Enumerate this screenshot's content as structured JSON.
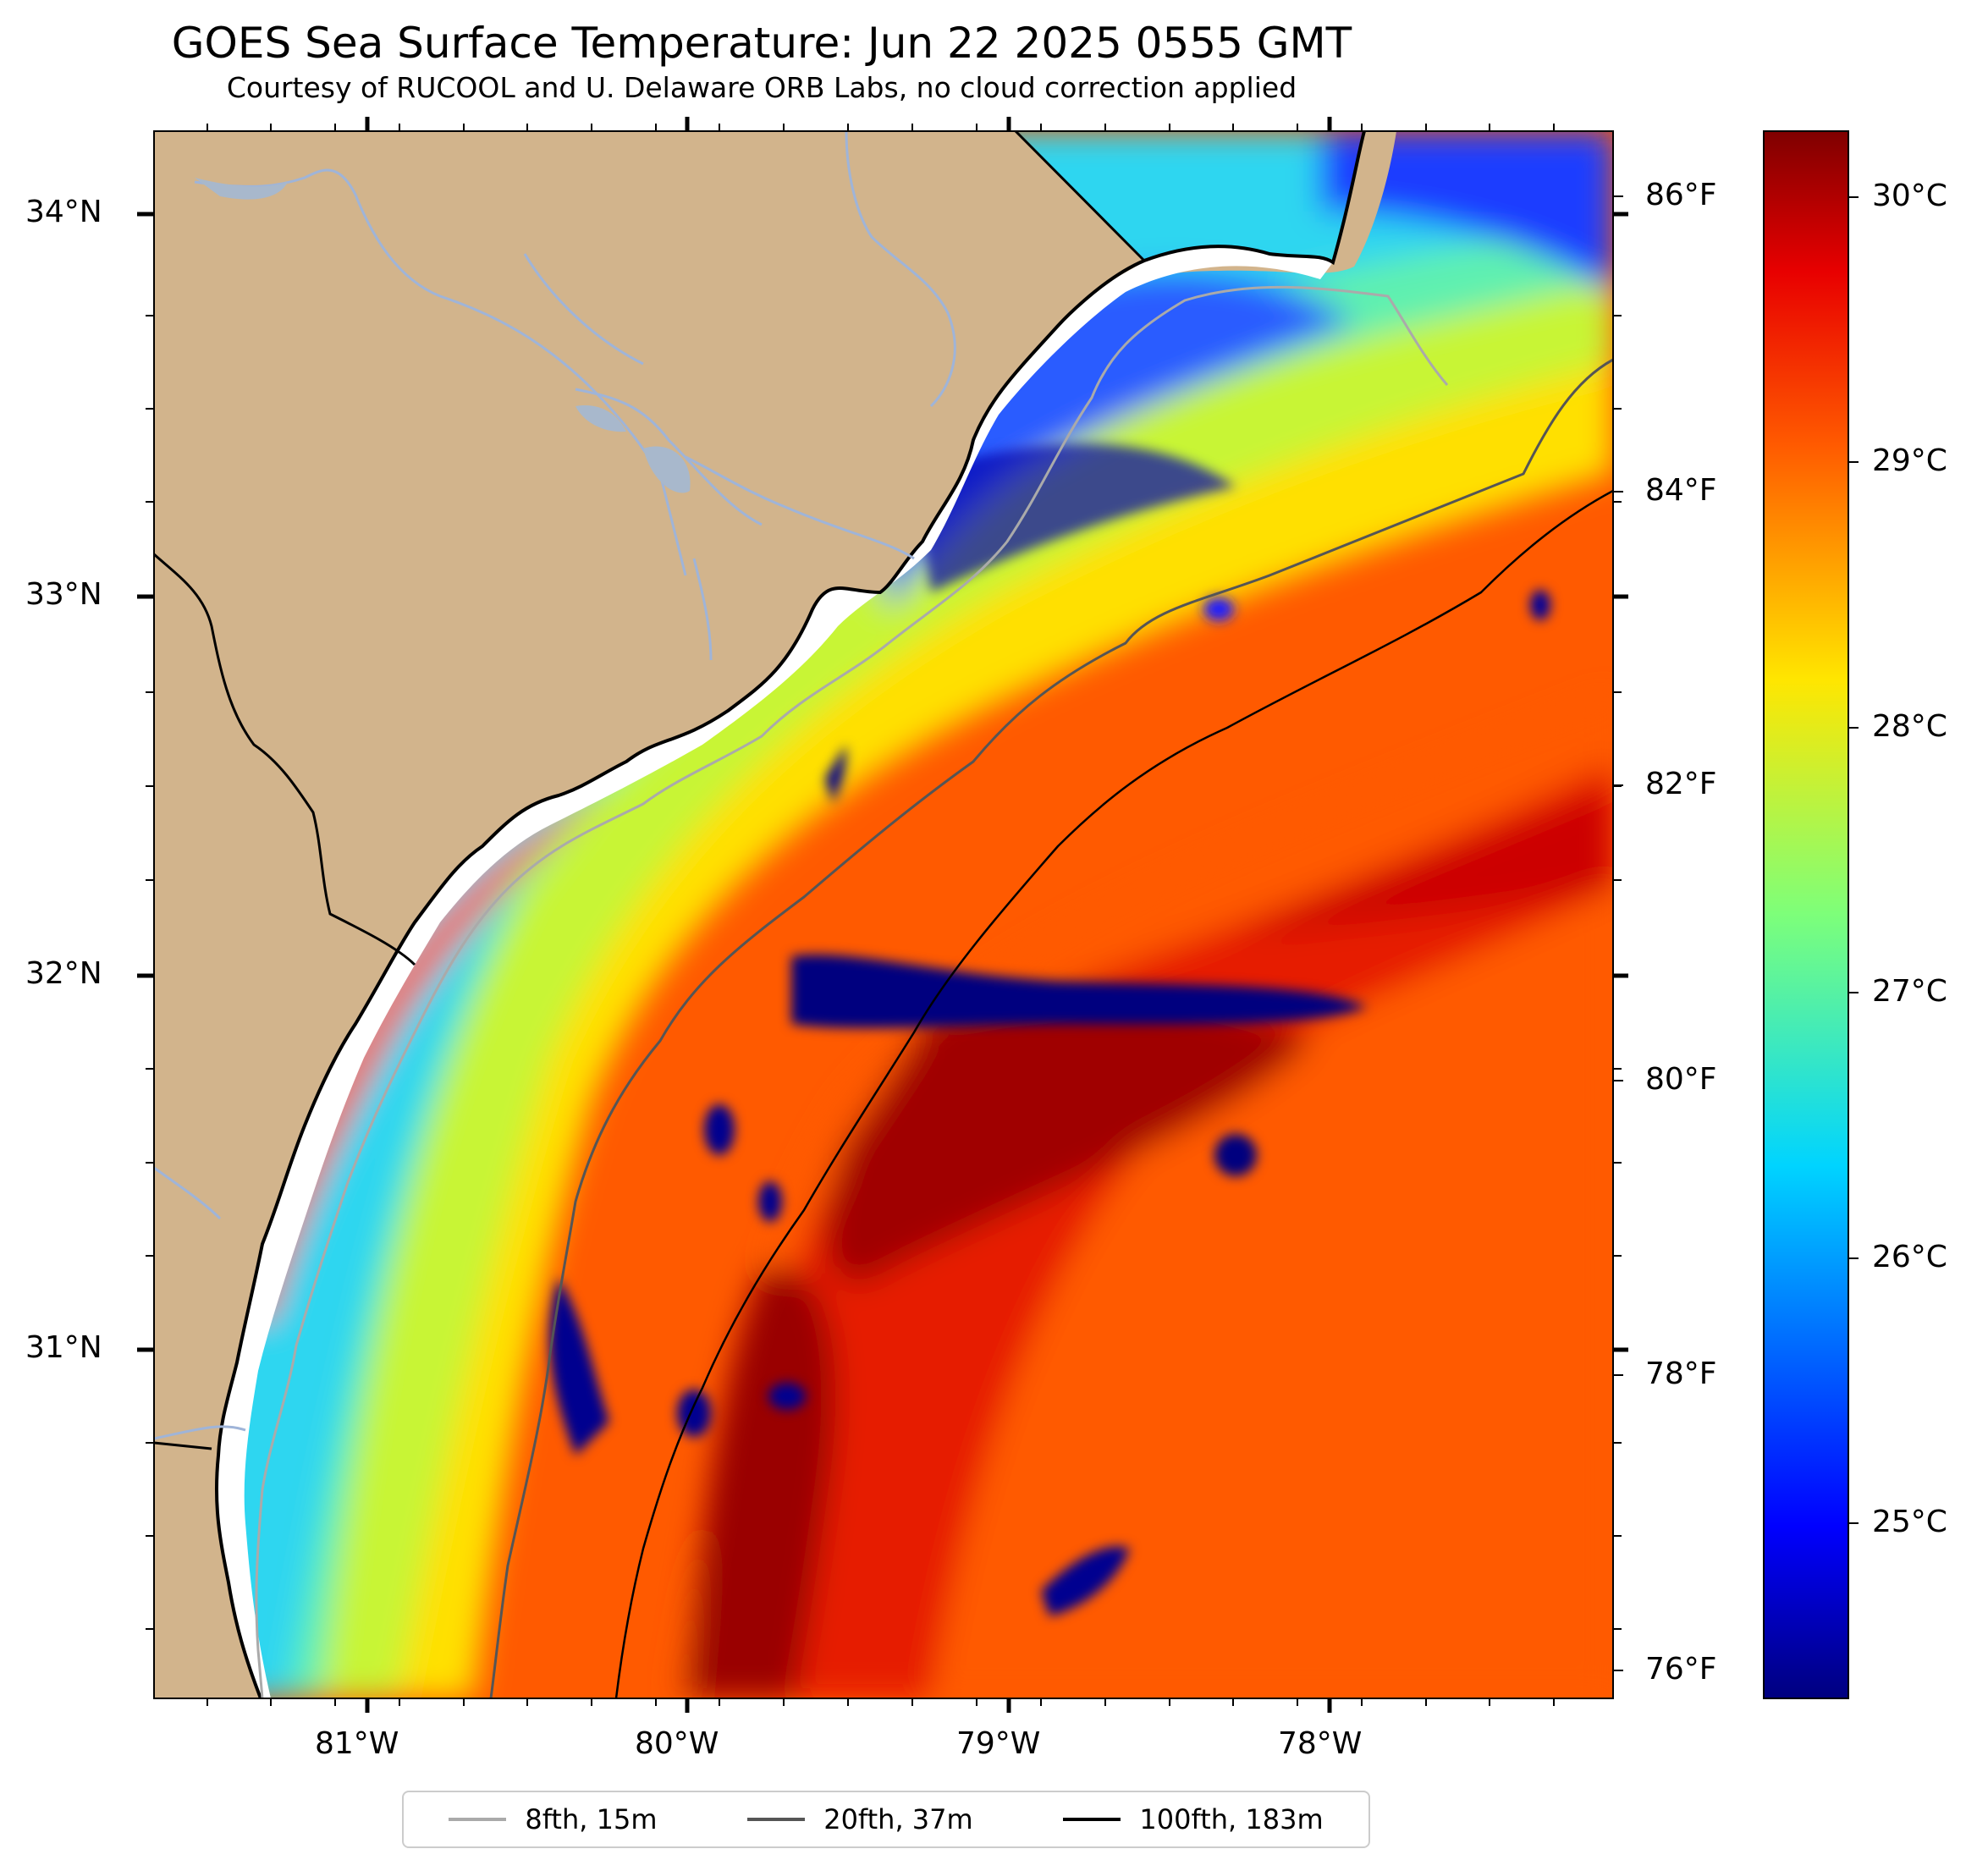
{
  "header": {
    "title": "GOES Sea Surface Temperature: Jun 22 2025 0555 GMT",
    "subtitle": "Courtesy of RUCOOL and U. Delaware ORB Labs, no cloud correction applied"
  },
  "map": {
    "lat_labels": [
      "34°N",
      "33°N",
      "32°N",
      "31°N"
    ],
    "lon_labels": [
      "81°W",
      "80°W",
      "79°W",
      "78°W"
    ],
    "fahrenheit_labels": [
      "86°F",
      "84°F",
      "82°F",
      "80°F",
      "78°F",
      "76°F"
    ],
    "land_color": "#d2b48c"
  },
  "colorbar": {
    "colormap": "jet",
    "celsius_labels": [
      "30°C",
      "29°C",
      "28°C",
      "27°C",
      "26°C",
      "25°C"
    ]
  },
  "legend": {
    "items": [
      {
        "label": "8fth, 15m",
        "color": "#aaaaaa"
      },
      {
        "label": "20fth, 37m",
        "color": "#555555"
      },
      {
        "label": "100fth, 183m",
        "color": "#000000"
      }
    ]
  }
}
